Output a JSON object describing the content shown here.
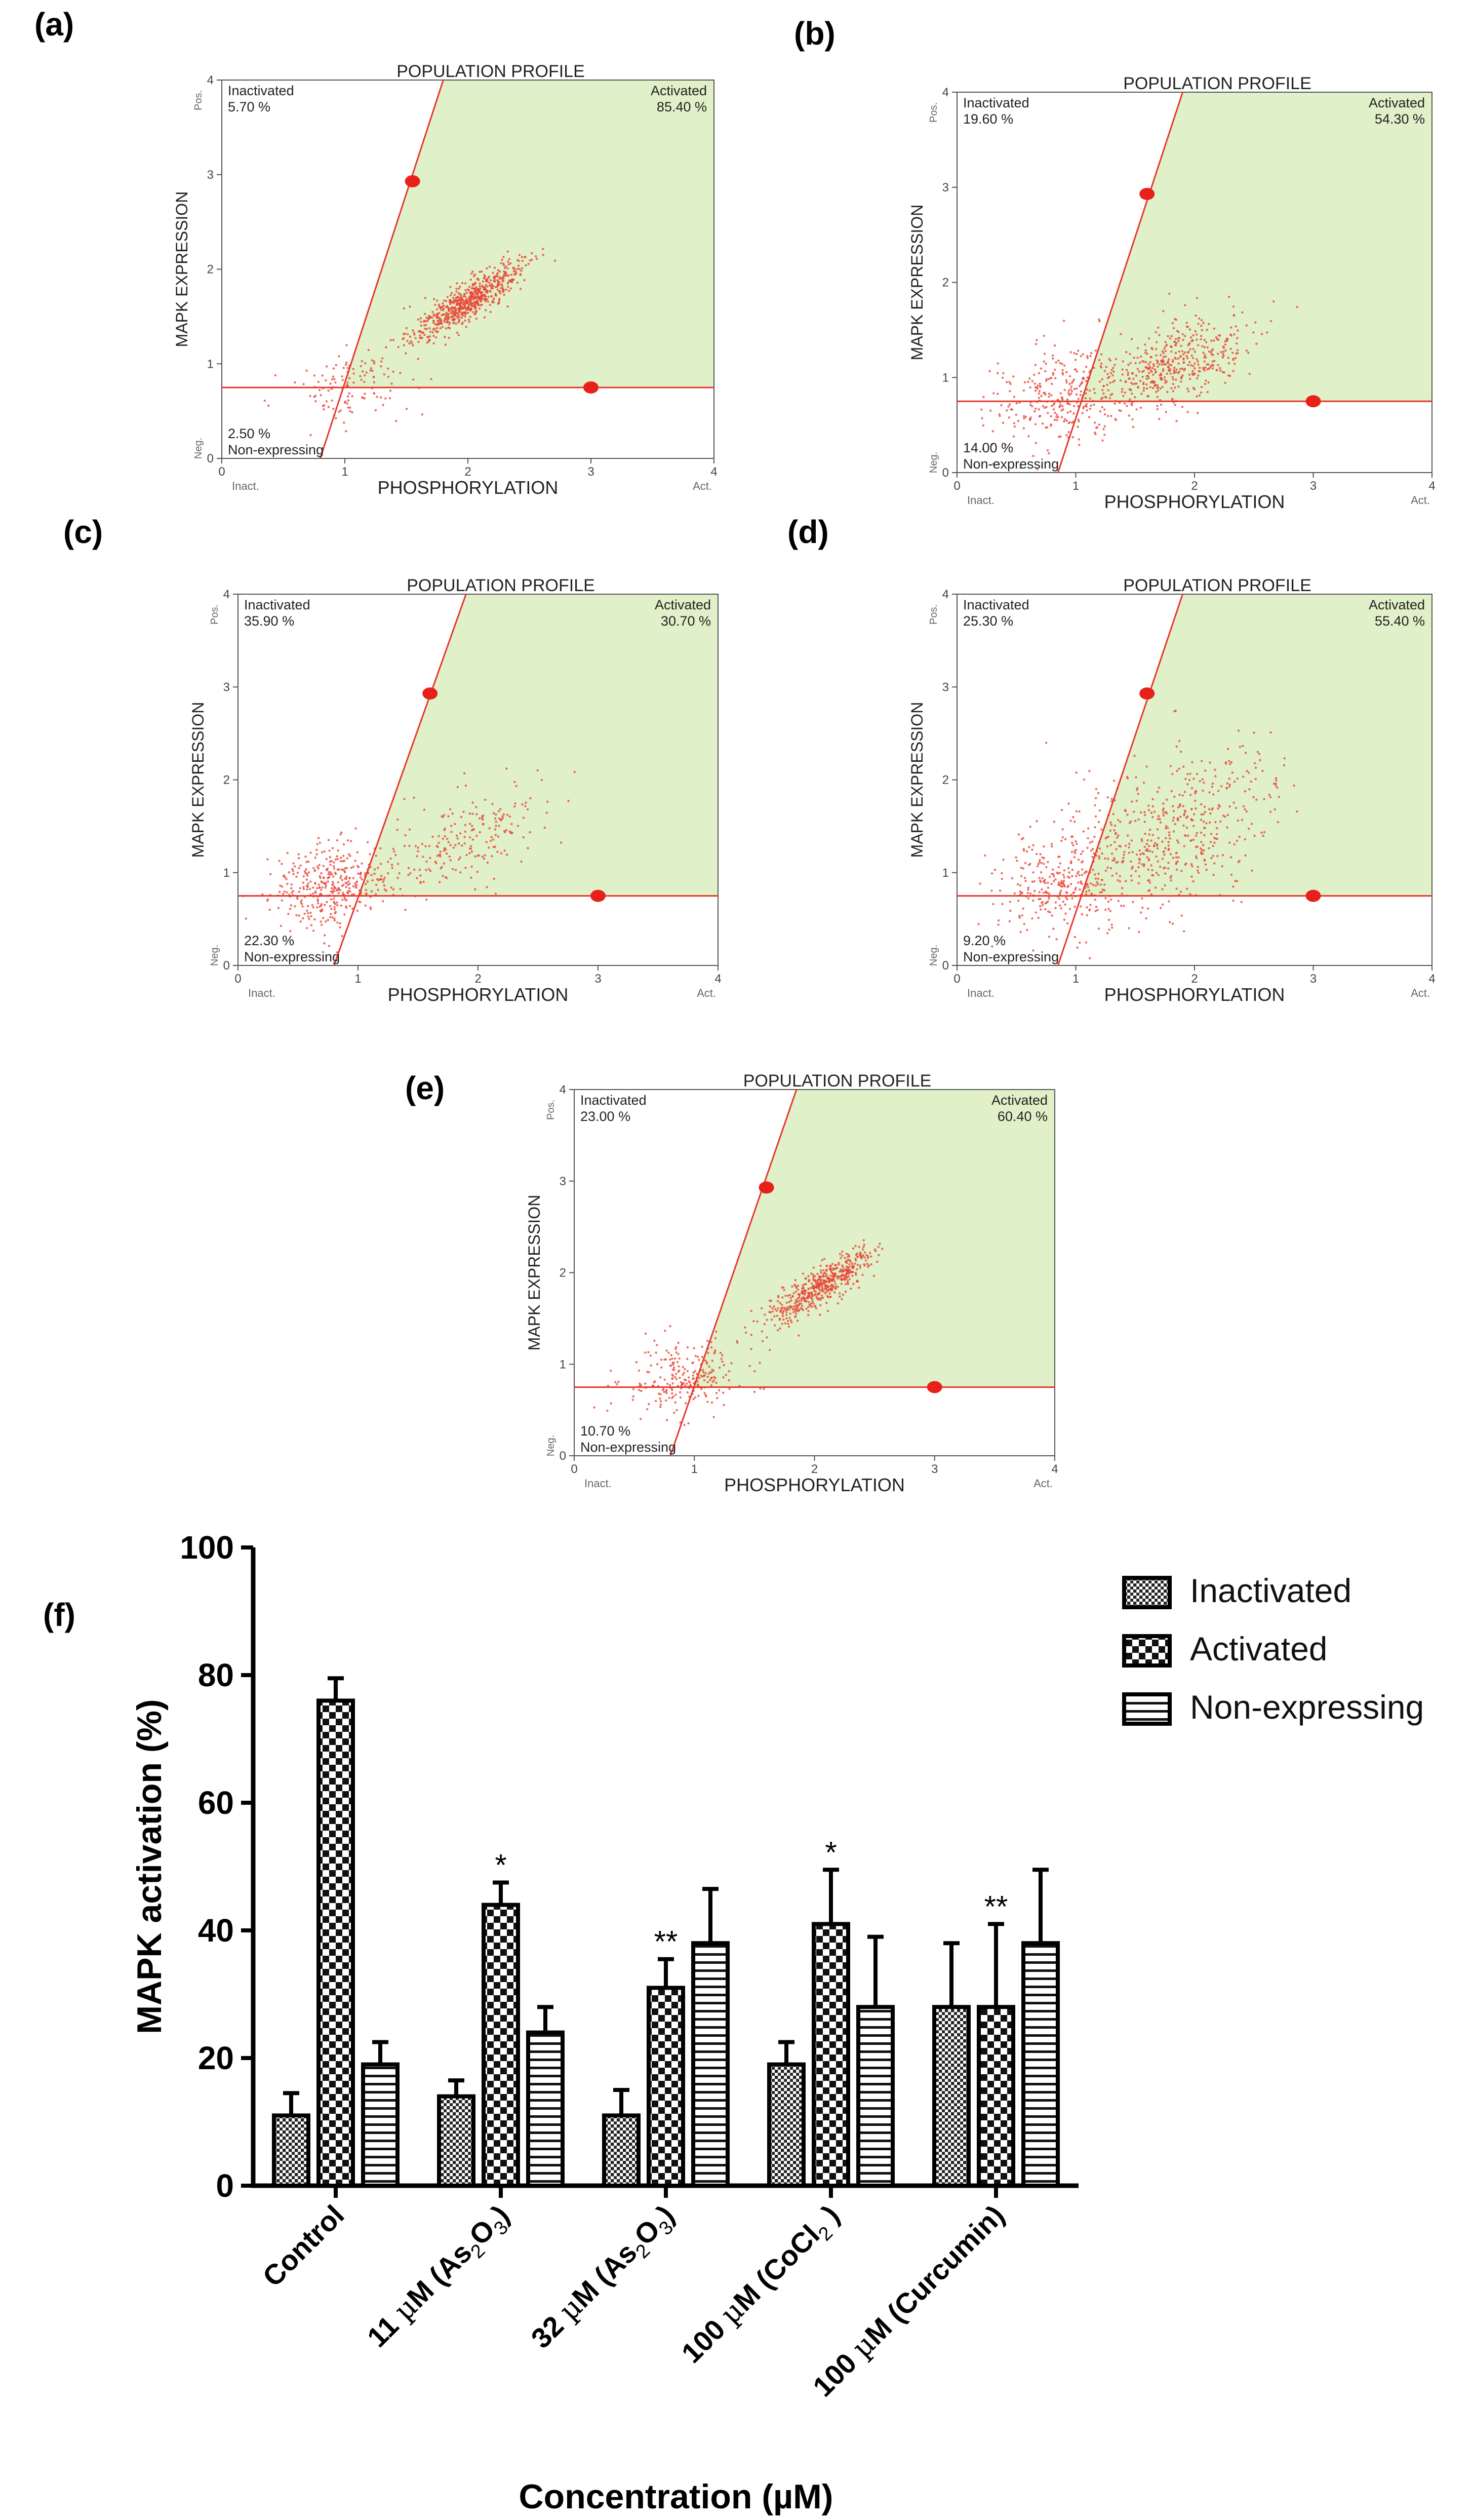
{
  "figure": {
    "bg": "#ffffff"
  },
  "chart_data": [
    {
      "panel": "(a)",
      "type": "scatter",
      "title": "POPULATION PROFILE",
      "xlabel": "PHOSPHORYLATION",
      "ylabel": "MAPK EXPRESSION",
      "xlim": [
        0,
        4
      ],
      "ylim": [
        0,
        4
      ],
      "xticks": [
        "0",
        "1",
        "2",
        "3",
        "4"
      ],
      "yticks": [
        "0",
        "1",
        "2",
        "3",
        "4"
      ],
      "x_end_labels": [
        "Inact.",
        "Act."
      ],
      "y_end_labels": [
        "Neg.",
        "Pos."
      ],
      "quadrants": {
        "inactivated": {
          "label": "Inactivated",
          "value": "5.70 %"
        },
        "activated": {
          "label": "Activated",
          "value": "85.40 %"
        },
        "non_expressing": {
          "label": "Non-expressing",
          "value": "2.50 %"
        }
      },
      "gates": {
        "horizontal_y": 0.75,
        "diagonal": [
          [
            0.8,
            0
          ],
          [
            1.8,
            4
          ]
        ],
        "handles": [
          [
            1.55,
            2.93
          ],
          [
            3.0,
            0.75
          ]
        ]
      },
      "clusters": [
        {
          "cx": 2.0,
          "cy": 1.65,
          "sx": 0.22,
          "sy": 0.2,
          "rho": 0.85,
          "n": 700
        },
        {
          "cx": 1.05,
          "cy": 0.78,
          "sx": 0.25,
          "sy": 0.18,
          "rho": 0.2,
          "n": 120
        }
      ]
    },
    {
      "panel": "(b)",
      "type": "scatter",
      "title": "POPULATION PROFILE",
      "xlabel": "PHOSPHORYLATION",
      "ylabel": "MAPK EXPRESSION",
      "xlim": [
        0,
        4
      ],
      "ylim": [
        0,
        4
      ],
      "xticks": [
        "0",
        "1",
        "2",
        "3",
        "4"
      ],
      "yticks": [
        "0",
        "1",
        "2",
        "3",
        "4"
      ],
      "x_end_labels": [
        "Inact.",
        "Act."
      ],
      "y_end_labels": [
        "Neg.",
        "Pos."
      ],
      "quadrants": {
        "inactivated": {
          "label": "Inactivated",
          "value": "19.60 %"
        },
        "activated": {
          "label": "Activated",
          "value": "54.30 %"
        },
        "non_expressing": {
          "label": "Non-expressing",
          "value": "14.00 %"
        }
      },
      "gates": {
        "horizontal_y": 0.75,
        "diagonal": [
          [
            0.85,
            0
          ],
          [
            1.9,
            4
          ]
        ],
        "handles": [
          [
            1.6,
            2.93
          ],
          [
            3.0,
            0.75
          ]
        ]
      },
      "clusters": [
        {
          "cx": 1.85,
          "cy": 1.15,
          "sx": 0.3,
          "sy": 0.25,
          "rho": 0.6,
          "n": 450
        },
        {
          "cx": 0.85,
          "cy": 0.8,
          "sx": 0.3,
          "sy": 0.25,
          "rho": 0.2,
          "n": 320
        }
      ]
    },
    {
      "panel": "(c)",
      "type": "scatter",
      "title": "POPULATION PROFILE",
      "xlabel": "PHOSPHORYLATION",
      "ylabel": "MAPK EXPRESSION",
      "xlim": [
        0,
        4
      ],
      "ylim": [
        0,
        4
      ],
      "xticks": [
        "0",
        "1",
        "2",
        "3",
        "4"
      ],
      "yticks": [
        "0",
        "1",
        "2",
        "3",
        "4"
      ],
      "x_end_labels": [
        "Inact.",
        "Act."
      ],
      "y_end_labels": [
        "Neg.",
        "Pos."
      ],
      "quadrants": {
        "inactivated": {
          "label": "Inactivated",
          "value": "35.90 %"
        },
        "activated": {
          "label": "Activated",
          "value": "30.70 %"
        },
        "non_expressing": {
          "label": "Non-expressing",
          "value": "22.30 %"
        }
      },
      "gates": {
        "horizontal_y": 0.75,
        "diagonal": [
          [
            0.8,
            0
          ],
          [
            1.9,
            4
          ]
        ],
        "handles": [
          [
            1.6,
            2.93
          ],
          [
            3.0,
            0.75
          ]
        ]
      },
      "clusters": [
        {
          "cx": 0.75,
          "cy": 0.85,
          "sx": 0.25,
          "sy": 0.22,
          "rho": 0.2,
          "n": 380
        },
        {
          "cx": 1.9,
          "cy": 1.35,
          "sx": 0.35,
          "sy": 0.3,
          "rho": 0.55,
          "n": 220
        }
      ]
    },
    {
      "panel": "(d)",
      "type": "scatter",
      "title": "POPULATION PROFILE",
      "xlabel": "PHOSPHORYLATION",
      "ylabel": "MAPK EXPRESSION",
      "xlim": [
        0,
        4
      ],
      "ylim": [
        0,
        4
      ],
      "xticks": [
        "0",
        "1",
        "2",
        "3",
        "4"
      ],
      "yticks": [
        "0",
        "1",
        "2",
        "3",
        "4"
      ],
      "x_end_labels": [
        "Inact.",
        "Act."
      ],
      "y_end_labels": [
        "Neg.",
        "Pos."
      ],
      "quadrants": {
        "inactivated": {
          "label": "Inactivated",
          "value": "25.30 %"
        },
        "activated": {
          "label": "Activated",
          "value": "55.40 %"
        },
        "non_expressing": {
          "label": "Non-expressing",
          "value": "9.20 %"
        }
      },
      "gates": {
        "horizontal_y": 0.75,
        "diagonal": [
          [
            0.85,
            0
          ],
          [
            1.9,
            4
          ]
        ],
        "handles": [
          [
            1.6,
            2.93
          ],
          [
            3.0,
            0.75
          ]
        ]
      },
      "clusters": [
        {
          "cx": 1.8,
          "cy": 1.45,
          "sx": 0.45,
          "sy": 0.45,
          "rho": 0.45,
          "n": 520
        },
        {
          "cx": 0.85,
          "cy": 0.9,
          "sx": 0.28,
          "sy": 0.28,
          "rho": 0.2,
          "n": 280
        }
      ]
    },
    {
      "panel": "(e)",
      "type": "scatter",
      "title": "POPULATION PROFILE",
      "xlabel": "PHOSPHORYLATION",
      "ylabel": "MAPK EXPRESSION",
      "xlim": [
        0,
        4
      ],
      "ylim": [
        0,
        4
      ],
      "xticks": [
        "0",
        "1",
        "2",
        "3",
        "4"
      ],
      "yticks": [
        "0",
        "1",
        "2",
        "3",
        "4"
      ],
      "x_end_labels": [
        "Inact.",
        "Act."
      ],
      "y_end_labels": [
        "Neg.",
        "Pos."
      ],
      "quadrants": {
        "inactivated": {
          "label": "Inactivated",
          "value": "23.00 %"
        },
        "activated": {
          "label": "Activated",
          "value": "60.40 %"
        },
        "non_expressing": {
          "label": "Non-expressing",
          "value": "10.70 %"
        }
      },
      "gates": {
        "horizontal_y": 0.75,
        "diagonal": [
          [
            0.8,
            0
          ],
          [
            1.85,
            4
          ]
        ],
        "handles": [
          [
            1.6,
            2.93
          ],
          [
            3.0,
            0.75
          ]
        ]
      },
      "clusters": [
        {
          "cx": 2.05,
          "cy": 1.85,
          "sx": 0.22,
          "sy": 0.2,
          "rho": 0.85,
          "n": 550
        },
        {
          "cx": 0.9,
          "cy": 0.85,
          "sx": 0.25,
          "sy": 0.2,
          "rho": 0.2,
          "n": 250
        }
      ]
    },
    {
      "panel": "(f)",
      "type": "bar",
      "ylabel": "MAPK activation (%)",
      "xlabel": "Concentration (µM)",
      "ylim": [
        0,
        100
      ],
      "yticks": [
        "0",
        "20",
        "40",
        "60",
        "80",
        "100"
      ],
      "categories": [
        [
          "Control"
        ],
        [
          "11 ",
          "µ",
          "M (As",
          "2",
          "O",
          "3",
          ")"
        ],
        [
          "32 ",
          "µ",
          "M (As",
          "2",
          "O",
          "3",
          ")"
        ],
        [
          "100 ",
          "µ",
          "M (CoCl",
          "2",
          " )"
        ],
        [
          "100 ",
          "µ",
          "M (Curcumin)"
        ]
      ],
      "series": [
        {
          "name": "Inactivated",
          "pattern": "grid",
          "values": [
            11,
            14,
            11,
            19,
            28
          ],
          "errors": [
            3.5,
            2.5,
            4,
            3.5,
            10
          ]
        },
        {
          "name": "Activated",
          "pattern": "checker",
          "values": [
            76,
            44,
            31,
            41,
            28
          ],
          "errors": [
            3.5,
            3.5,
            4.5,
            8.5,
            13
          ]
        },
        {
          "name": "Non-expressing",
          "pattern": "stripes",
          "values": [
            19,
            24,
            38,
            28,
            38
          ],
          "errors": [
            3.5,
            4,
            8.5,
            11,
            11.5
          ]
        }
      ],
      "significance": [
        {
          "series": 1,
          "category": 1,
          "mark": "*"
        },
        {
          "series": 1,
          "category": 2,
          "mark": "**"
        },
        {
          "series": 1,
          "category": 3,
          "mark": "*"
        },
        {
          "series": 1,
          "category": 4,
          "mark": "**"
        }
      ]
    }
  ]
}
